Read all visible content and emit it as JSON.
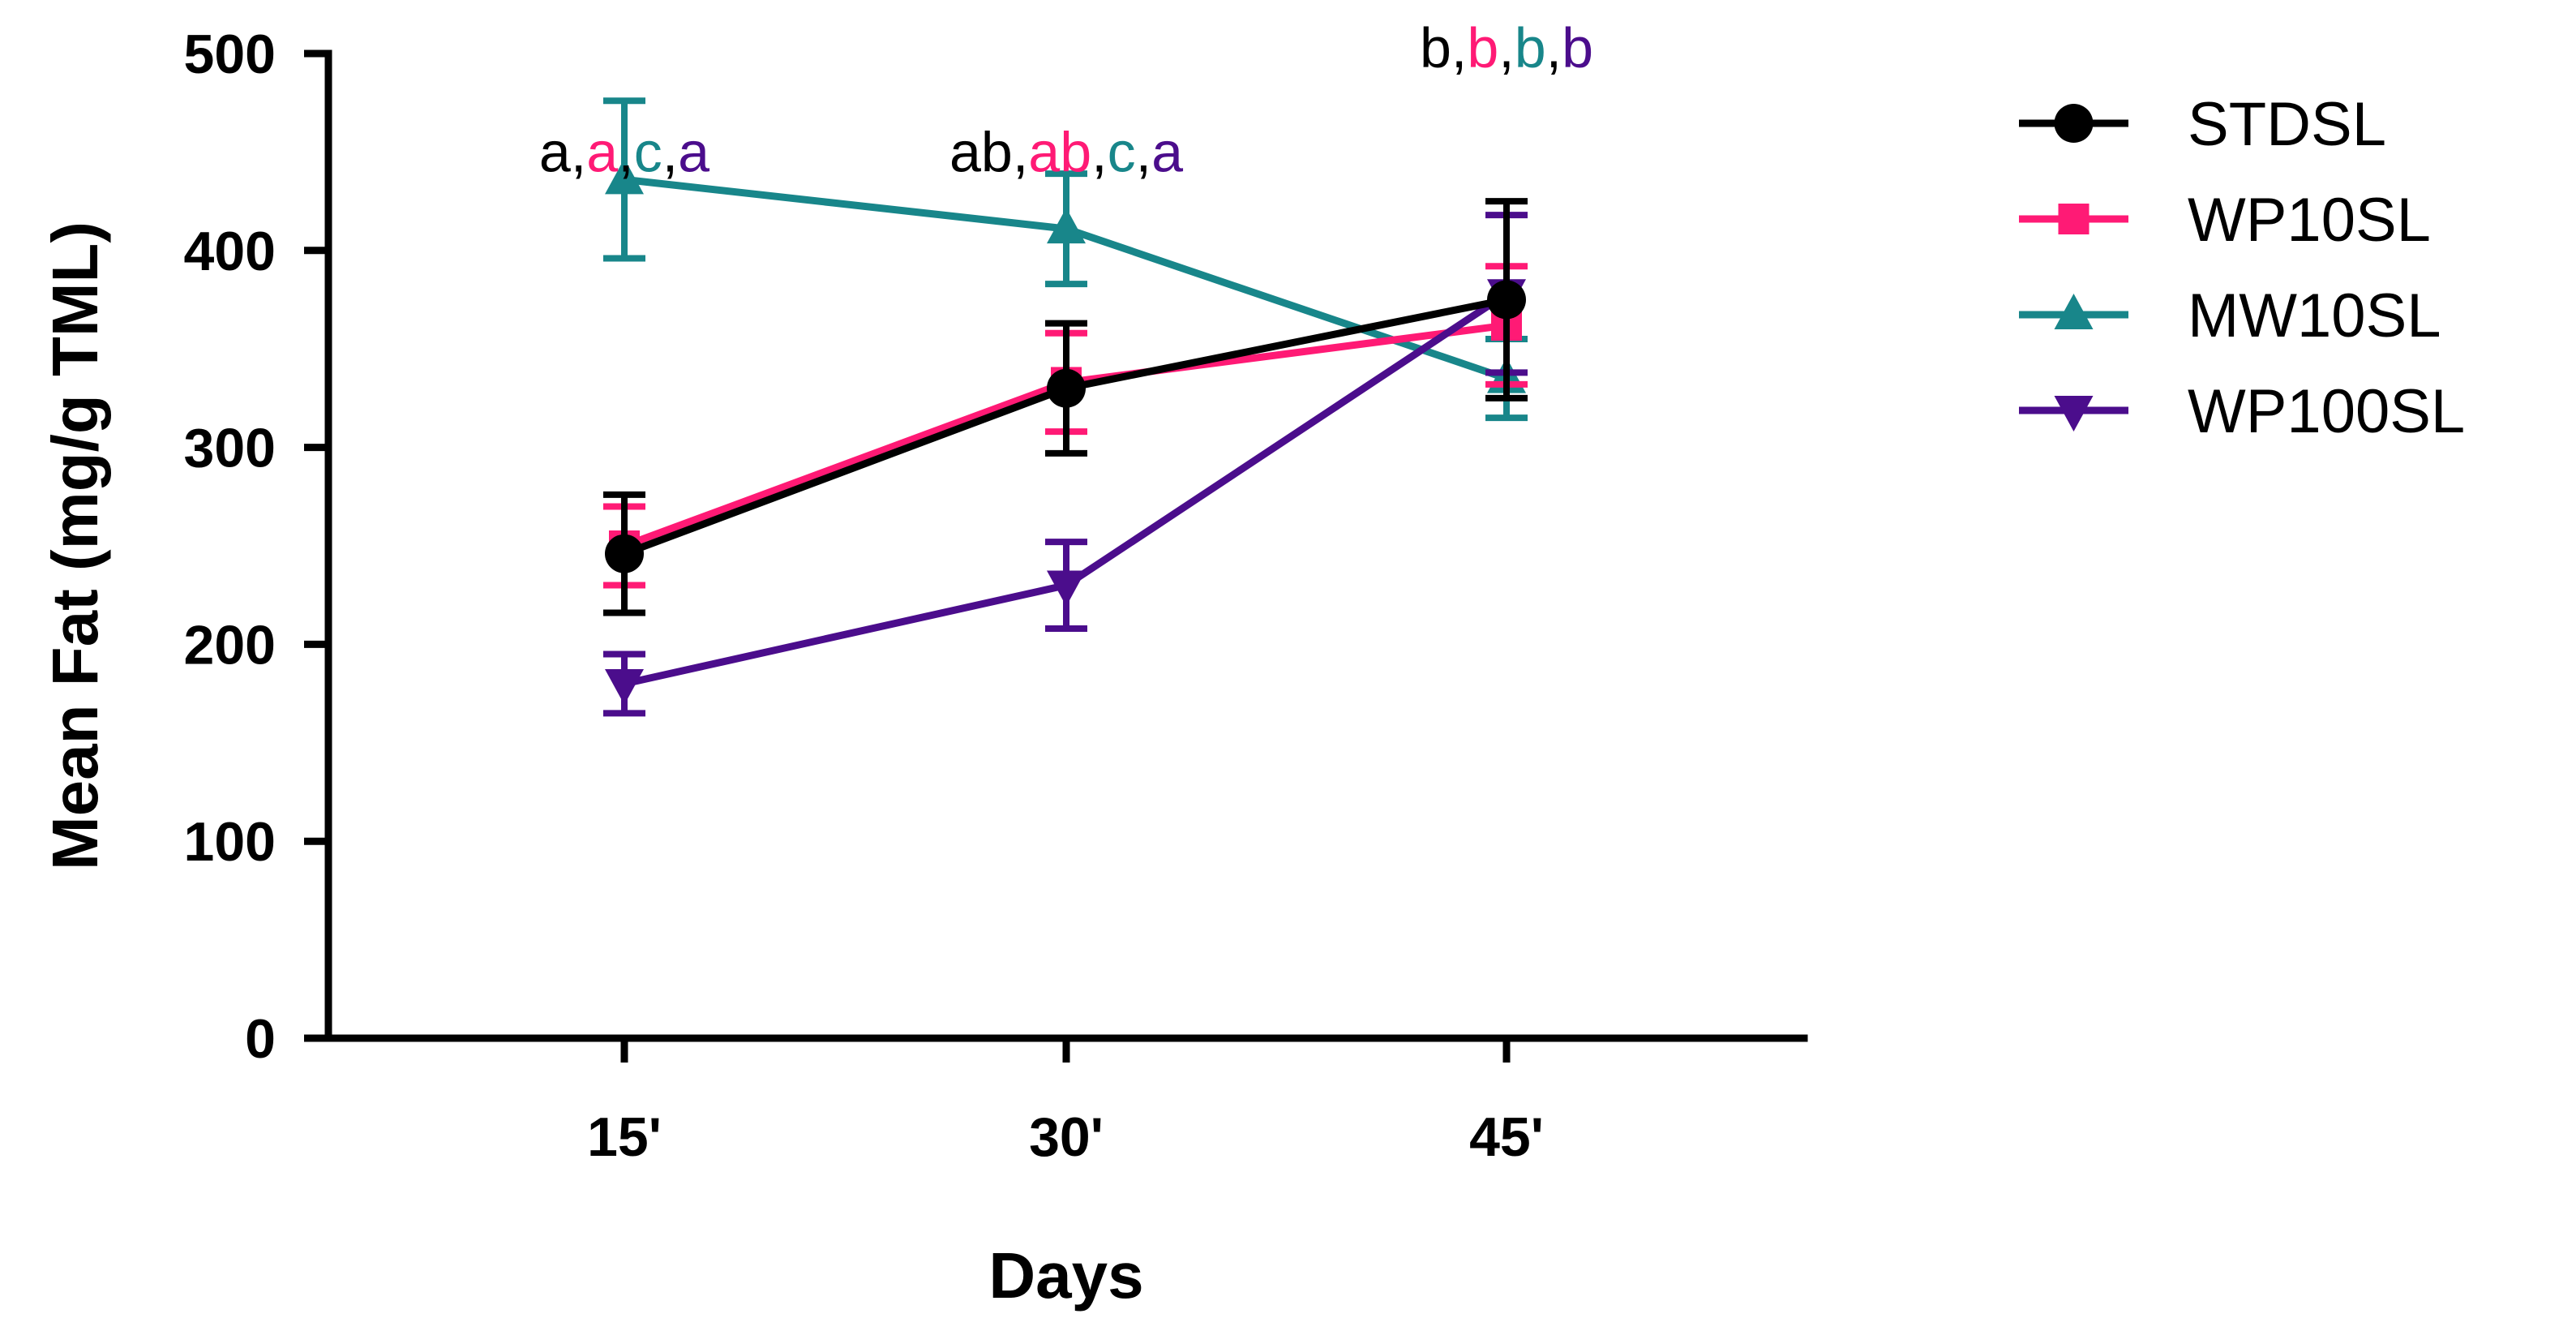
{
  "chart_data": {
    "type": "line",
    "title": "",
    "xlabel": "Days",
    "ylabel": "Mean Fat (mg/g  TML)",
    "categories": [
      "15'",
      "30'",
      "45'"
    ],
    "ylim": [
      0,
      500
    ],
    "yticks": [
      0,
      100,
      200,
      300,
      400,
      500
    ],
    "legend_position": "right",
    "series": [
      {
        "name": "STDSL",
        "color": "#000000",
        "marker": "circle",
        "values": [
          246,
          330,
          375
        ],
        "errors": [
          30,
          33,
          50
        ]
      },
      {
        "name": "WP10SL",
        "color": "#ff1a75",
        "marker": "square",
        "values": [
          250,
          333,
          362
        ],
        "errors": [
          20,
          25,
          30
        ]
      },
      {
        "name": "MW10SL",
        "color": "#18868a",
        "marker": "triangle-up",
        "values": [
          436,
          411,
          335
        ],
        "errors": [
          40,
          28,
          20
        ]
      },
      {
        "name": "WP100SL",
        "color": "#4b0d8c",
        "marker": "triangle-down",
        "values": [
          180,
          230,
          378
        ],
        "errors": [
          15,
          22,
          40
        ]
      }
    ],
    "annotations": [
      {
        "category": "15'",
        "y": 440,
        "parts": [
          {
            "text": "a",
            "series": 0
          },
          {
            "text": ",",
            "series": 0
          },
          {
            "text": "a",
            "series": 1
          },
          {
            "text": ",",
            "series": 0
          },
          {
            "text": "c",
            "series": 2
          },
          {
            "text": ",",
            "series": 0
          },
          {
            "text": "a",
            "series": 3
          }
        ]
      },
      {
        "category": "30'",
        "y": 440,
        "parts": [
          {
            "text": "ab",
            "series": 0
          },
          {
            "text": ",",
            "series": 0
          },
          {
            "text": "ab",
            "series": 1
          },
          {
            "text": ",",
            "series": 0
          },
          {
            "text": "c",
            "series": 2
          },
          {
            "text": ",",
            "series": 0
          },
          {
            "text": "a",
            "series": 3
          }
        ]
      },
      {
        "category": "45'",
        "y": 493,
        "parts": [
          {
            "text": "b",
            "series": 0
          },
          {
            "text": ",",
            "series": 0
          },
          {
            "text": "b",
            "series": 1
          },
          {
            "text": ",",
            "series": 0
          },
          {
            "text": "b",
            "series": 2
          },
          {
            "text": ",",
            "series": 0
          },
          {
            "text": "b",
            "series": 3
          }
        ]
      }
    ]
  }
}
